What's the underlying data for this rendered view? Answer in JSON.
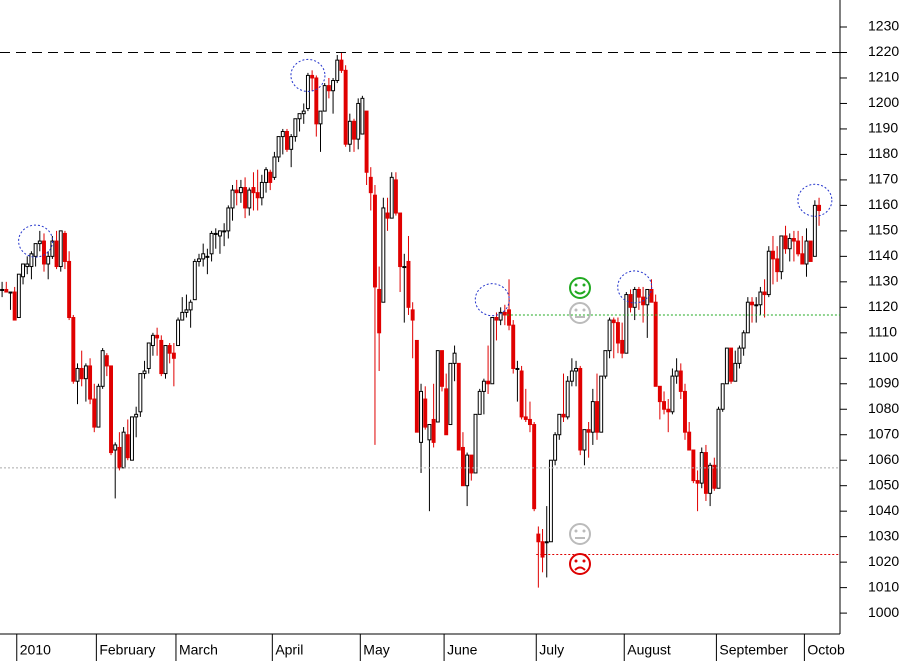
{
  "chart_data": {
    "type": "candlestick",
    "ohlc": [
      [
        1127,
        1130,
        1124,
        1127
      ],
      [
        1127,
        1130,
        1126,
        1126
      ],
      [
        1126,
        1126,
        1119,
        1126
      ],
      [
        1126,
        1128,
        1115,
        1115
      ],
      [
        1116,
        1133,
        1116,
        1133
      ],
      [
        1132,
        1137,
        1129,
        1137
      ],
      [
        1136,
        1140,
        1133,
        1137
      ],
      [
        1136,
        1142,
        1131,
        1141
      ],
      [
        1140,
        1145,
        1136,
        1145
      ],
      [
        1145,
        1150,
        1142,
        1146
      ],
      [
        1146,
        1149,
        1134,
        1137
      ],
      [
        1137,
        1142,
        1131,
        1140
      ],
      [
        1140,
        1148,
        1139,
        1146
      ],
      [
        1146,
        1150,
        1135,
        1136
      ],
      [
        1136,
        1150,
        1134,
        1150
      ],
      [
        1149,
        1150,
        1135,
        1138
      ],
      [
        1138,
        1142,
        1115,
        1116
      ],
      [
        1116,
        1117,
        1090,
        1091
      ],
      [
        1091,
        1098,
        1082,
        1096
      ],
      [
        1096,
        1103,
        1089,
        1092
      ],
      [
        1092,
        1098,
        1083,
        1097
      ],
      [
        1097,
        1100,
        1082,
        1084
      ],
      [
        1084,
        1090,
        1071,
        1073
      ],
      [
        1073,
        1090,
        1073,
        1089
      ],
      [
        1089,
        1104,
        1088,
        1103
      ],
      [
        1101,
        1102,
        1093,
        1097
      ],
      [
        1097,
        1097,
        1062,
        1063
      ],
      [
        1064,
        1067,
        1045,
        1066
      ],
      [
        1065,
        1071,
        1056,
        1057
      ],
      [
        1057,
        1073,
        1057,
        1071
      ],
      [
        1070,
        1076,
        1060,
        1061
      ],
      [
        1060,
        1077,
        1060,
        1077
      ],
      [
        1077,
        1081,
        1069,
        1078
      ],
      [
        1079,
        1094,
        1077,
        1094
      ],
      [
        1094,
        1099,
        1092,
        1095
      ],
      [
        1096,
        1106,
        1094,
        1106
      ],
      [
        1105,
        1110,
        1101,
        1109
      ],
      [
        1109,
        1112,
        1101,
        1108
      ],
      [
        1107,
        1109,
        1093,
        1094
      ],
      [
        1094,
        1105,
        1092,
        1105
      ],
      [
        1105,
        1106,
        1098,
        1102
      ],
      [
        1102,
        1106,
        1089,
        1100
      ],
      [
        1105,
        1116,
        1105,
        1115
      ],
      [
        1115,
        1124,
        1115,
        1118
      ],
      [
        1118,
        1125,
        1116,
        1119
      ],
      [
        1119,
        1123,
        1112,
        1122
      ],
      [
        1123,
        1139,
        1123,
        1138
      ],
      [
        1138,
        1141,
        1136,
        1139
      ],
      [
        1139,
        1145,
        1136,
        1141
      ],
      [
        1140,
        1143,
        1133,
        1140
      ],
      [
        1141,
        1150,
        1138,
        1149
      ],
      [
        1149,
        1151,
        1143,
        1149
      ],
      [
        1148,
        1150,
        1141,
        1150
      ],
      [
        1150,
        1153,
        1144,
        1150
      ],
      [
        1150,
        1160,
        1147,
        1159
      ],
      [
        1159,
        1168,
        1154,
        1166
      ],
      [
        1166,
        1170,
        1160,
        1165
      ],
      [
        1165,
        1170,
        1161,
        1167
      ],
      [
        1167,
        1171,
        1155,
        1159
      ],
      [
        1159,
        1167,
        1156,
        1166
      ],
      [
        1167,
        1173,
        1158,
        1165
      ],
      [
        1165,
        1174,
        1158,
        1163
      ],
      [
        1163,
        1172,
        1160,
        1169
      ],
      [
        1169,
        1175,
        1165,
        1174
      ],
      [
        1173,
        1174,
        1166,
        1169
      ],
      [
        1171,
        1181,
        1170,
        1179
      ],
      [
        1179,
        1187,
        1177,
        1187
      ],
      [
        1187,
        1190,
        1180,
        1189
      ],
      [
        1189,
        1190,
        1181,
        1182
      ],
      [
        1182,
        1188,
        1175,
        1187
      ],
      [
        1187,
        1194,
        1185,
        1194
      ],
      [
        1194,
        1196,
        1189,
        1196
      ],
      [
        1196,
        1200,
        1192,
        1197
      ],
      [
        1198,
        1212,
        1197,
        1211
      ],
      [
        1211,
        1213,
        1205,
        1210
      ],
      [
        1210,
        1211,
        1187,
        1192
      ],
      [
        1192,
        1197,
        1181,
        1197
      ],
      [
        1197,
        1208,
        1197,
        1207
      ],
      [
        1207,
        1210,
        1202,
        1205
      ],
      [
        1205,
        1210,
        1196,
        1209
      ],
      [
        1209,
        1219,
        1208,
        1217
      ],
      [
        1217,
        1220,
        1212,
        1213
      ],
      [
        1213,
        1215,
        1183,
        1184
      ],
      [
        1184,
        1196,
        1181,
        1193
      ],
      [
        1193,
        1194,
        1181,
        1186
      ],
      [
        1186,
        1202,
        1182,
        1200
      ],
      [
        1188,
        1203,
        1188,
        1202
      ],
      [
        1197,
        1197,
        1168,
        1173
      ],
      [
        1171,
        1175,
        1158,
        1165
      ],
      [
        1164,
        1168,
        1066,
        1128
      ],
      [
        1127,
        1136,
        1095,
        1110
      ],
      [
        1122,
        1163,
        1122,
        1159
      ],
      [
        1157,
        1163,
        1150,
        1155
      ],
      [
        1155,
        1173,
        1155,
        1171
      ],
      [
        1170,
        1173,
        1156,
        1157
      ],
      [
        1157,
        1157,
        1126,
        1136
      ],
      [
        1136,
        1141,
        1114,
        1136
      ],
      [
        1138,
        1148,
        1117,
        1120
      ],
      [
        1119,
        1122,
        1100,
        1115
      ],
      [
        1107,
        1107,
        1071,
        1071
      ],
      [
        1067,
        1090,
        1055,
        1087
      ],
      [
        1084,
        1089,
        1072,
        1073
      ],
      [
        1068,
        1074,
        1040,
        1074
      ],
      [
        1076,
        1090,
        1065,
        1067
      ],
      [
        1075,
        1103,
        1075,
        1103
      ],
      [
        1103,
        1103,
        1087,
        1089
      ],
      [
        1088,
        1094,
        1070,
        1070
      ],
      [
        1074,
        1098,
        1074,
        1098
      ],
      [
        1098,
        1105,
        1091,
        1102
      ],
      [
        1098,
        1098,
        1064,
        1064
      ],
      [
        1065,
        1071,
        1050,
        1050
      ],
      [
        1050,
        1063,
        1042,
        1062
      ],
      [
        1062,
        1062,
        1052,
        1055
      ],
      [
        1055,
        1078,
        1055,
        1078
      ],
      [
        1078,
        1088,
        1078,
        1087
      ],
      [
        1087,
        1092,
        1078,
        1091
      ],
      [
        1091,
        1105,
        1086,
        1090
      ],
      [
        1090,
        1116,
        1090,
        1116
      ],
      [
        1116,
        1118,
        1107,
        1115
      ],
      [
        1115,
        1120,
        1113,
        1118
      ],
      [
        1118,
        1121,
        1113,
        1117
      ],
      [
        1119,
        1131,
        1111,
        1113
      ],
      [
        1113,
        1115,
        1094,
        1096
      ],
      [
        1096,
        1099,
        1083,
        1096
      ],
      [
        1095,
        1097,
        1076,
        1077
      ],
      [
        1077,
        1088,
        1075,
        1076
      ],
      [
        1076,
        1083,
        1071,
        1074
      ],
      [
        1074,
        1075,
        1040,
        1041
      ],
      [
        1031,
        1034,
        1010,
        1028
      ],
      [
        1028,
        1033,
        1016,
        1022
      ],
      [
        1028,
        1042,
        1014,
        1028
      ],
      [
        1028,
        1060,
        1028,
        1060
      ],
      [
        1060,
        1071,
        1058,
        1070
      ],
      [
        1070,
        1078,
        1068,
        1078
      ],
      [
        1078,
        1094,
        1075,
        1077
      ],
      [
        1077,
        1093,
        1076,
        1091
      ],
      [
        1091,
        1100,
        1089,
        1095
      ],
      [
        1095,
        1099,
        1089,
        1096
      ],
      [
        1096,
        1097,
        1062,
        1064
      ],
      [
        1064,
        1072,
        1058,
        1072
      ],
      [
        1072,
        1075,
        1061,
        1071
      ],
      [
        1071,
        1088,
        1066,
        1083
      ],
      [
        1083,
        1094,
        1068,
        1071
      ],
      [
        1071,
        1093,
        1071,
        1093
      ],
      [
        1093,
        1103,
        1092,
        1103
      ],
      [
        1103,
        1116,
        1100,
        1115
      ],
      [
        1115,
        1116,
        1100,
        1114
      ],
      [
        1114,
        1116,
        1102,
        1106
      ],
      [
        1107,
        1114,
        1100,
        1102
      ],
      [
        1102,
        1126,
        1102,
        1125
      ],
      [
        1125,
        1127,
        1118,
        1120
      ],
      [
        1120,
        1128,
        1115,
        1127
      ],
      [
        1127,
        1128,
        1119,
        1124
      ],
      [
        1124,
        1128,
        1114,
        1121
      ],
      [
        1121,
        1127,
        1108,
        1127
      ],
      [
        1127,
        1131,
        1122,
        1122
      ],
      [
        1122,
        1125,
        1089,
        1089
      ],
      [
        1089,
        1089,
        1076,
        1083
      ],
      [
        1083,
        1087,
        1078,
        1080
      ],
      [
        1080,
        1084,
        1071,
        1079
      ],
      [
        1079,
        1096,
        1078,
        1093
      ],
      [
        1093,
        1100,
        1090,
        1095
      ],
      [
        1095,
        1098,
        1084,
        1087
      ],
      [
        1087,
        1090,
        1068,
        1071
      ],
      [
        1071,
        1075,
        1064,
        1064
      ],
      [
        1064,
        1064,
        1051,
        1052
      ],
      [
        1052,
        1056,
        1040,
        1051
      ],
      [
        1051,
        1065,
        1049,
        1063
      ],
      [
        1063,
        1066,
        1044,
        1047
      ],
      [
        1047,
        1059,
        1042,
        1058
      ],
      [
        1058,
        1061,
        1048,
        1049
      ],
      [
        1049,
        1081,
        1049,
        1080
      ],
      [
        1080,
        1090,
        1079,
        1090
      ],
      [
        1090,
        1104,
        1090,
        1104
      ],
      [
        1104,
        1104,
        1090,
        1091
      ],
      [
        1091,
        1103,
        1091,
        1098
      ],
      [
        1098,
        1105,
        1096,
        1104
      ],
      [
        1104,
        1111,
        1101,
        1110
      ],
      [
        1110,
        1124,
        1110,
        1122
      ],
      [
        1122,
        1124,
        1114,
        1121
      ],
      [
        1121,
        1124,
        1114,
        1121
      ],
      [
        1121,
        1128,
        1117,
        1126
      ],
      [
        1126,
        1131,
        1116,
        1125
      ],
      [
        1125,
        1144,
        1124,
        1142
      ],
      [
        1142,
        1148,
        1129,
        1139
      ],
      [
        1139,
        1144,
        1130,
        1134
      ],
      [
        1134,
        1148,
        1131,
        1148
      ],
      [
        1148,
        1152,
        1141,
        1143
      ],
      [
        1143,
        1149,
        1138,
        1147
      ],
      [
        1147,
        1150,
        1138,
        1146
      ],
      [
        1146,
        1150,
        1140,
        1141
      ],
      [
        1141,
        1148,
        1137,
        1137
      ],
      [
        1137,
        1151,
        1132,
        1146
      ],
      [
        1146,
        1146,
        1138,
        1138
      ],
      [
        1140,
        1162,
        1140,
        1160
      ],
      [
        1160,
        1163,
        1152,
        1158
      ]
    ],
    "up_color": "#000000",
    "down_color": "#e00000",
    "xlim": [
      0,
      200.5
    ],
    "xticks": [
      {
        "value": 4,
        "label": "2010"
      },
      {
        "value": 23,
        "label": "February"
      },
      {
        "value": 42,
        "label": "March"
      },
      {
        "value": 65,
        "label": "April"
      },
      {
        "value": 86,
        "label": "May"
      },
      {
        "value": 106,
        "label": "June"
      },
      {
        "value": 128,
        "label": "July"
      },
      {
        "value": 149,
        "label": "August"
      },
      {
        "value": 171,
        "label": "September"
      },
      {
        "value": 192,
        "label": "Octob"
      }
    ],
    "ylim": [
      991.8,
      1240.6
    ],
    "yticks": [
      1000,
      1010,
      1020,
      1030,
      1040,
      1050,
      1060,
      1070,
      1080,
      1090,
      1100,
      1110,
      1120,
      1130,
      1140,
      1150,
      1160,
      1170,
      1180,
      1190,
      1200,
      1210,
      1220,
      1230
    ],
    "hlines": [
      {
        "value": 1220,
        "start": 0,
        "color": "#000000",
        "dash": "10,6"
      },
      {
        "value": 1117,
        "start": 121,
        "color": "#22aa22",
        "dash": "2,2"
      },
      {
        "value": 1057,
        "start": 0,
        "color": "#aaaaaa",
        "dash": "2,2"
      },
      {
        "value": 1023,
        "start": 128,
        "color": "#dd0000",
        "dash": "2,2"
      }
    ],
    "highlights": [
      {
        "index": 8,
        "value": 1146
      },
      {
        "index": 73,
        "value": 1211
      },
      {
        "index": 117,
        "value": 1123
      },
      {
        "index": 151,
        "value": 1128
      },
      {
        "index": 194,
        "value": 1162
      }
    ]
  }
}
